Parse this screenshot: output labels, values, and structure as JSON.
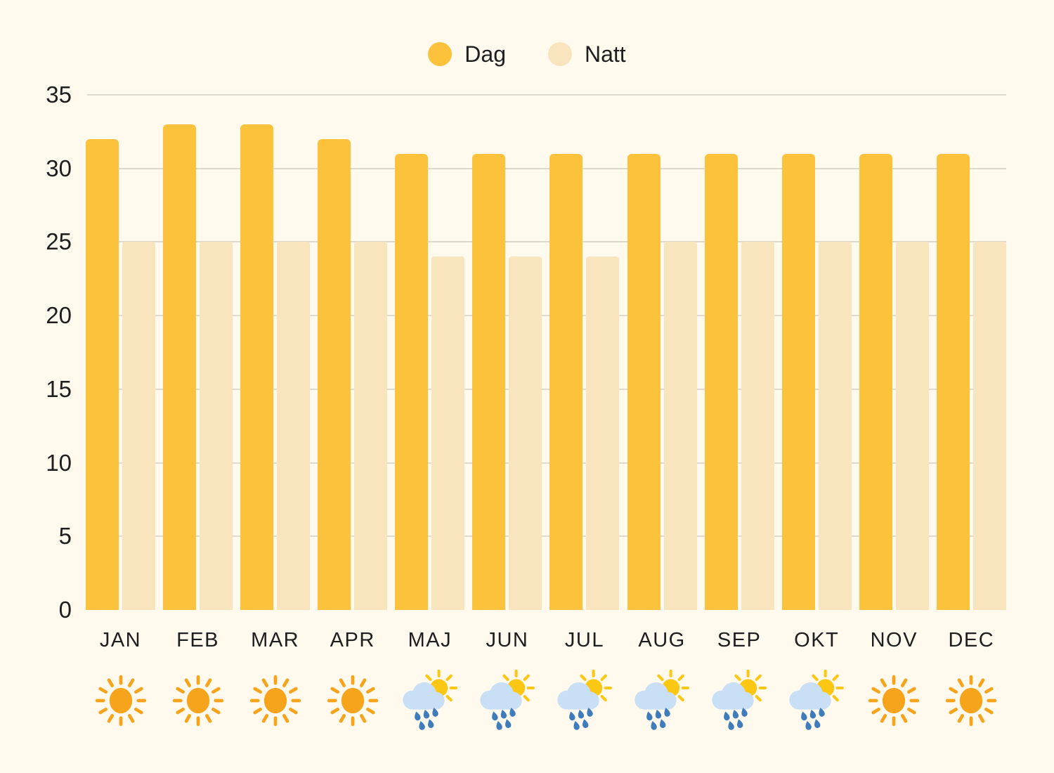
{
  "colors": {
    "background": "#FFF9EE",
    "day_bar": "#FDC23C",
    "night_bar": "#F8E5BD",
    "gridline": "#DFDACF",
    "text": "#1E1E1E",
    "sun": "#F6A41C",
    "sun_small": "#FCC713",
    "cloud": "#C8DFF5",
    "raindrop": "#3E7CBC"
  },
  "legend": {
    "items": [
      {
        "label": "Dag",
        "color": "#FDC23C"
      },
      {
        "label": "Natt",
        "color": "#F8E5BD"
      }
    ]
  },
  "chart_data": {
    "type": "bar",
    "title": "",
    "xlabel": "",
    "ylabel": "",
    "categories": [
      "JAN",
      "FEB",
      "MAR",
      "APR",
      "MAJ",
      "JUN",
      "JUL",
      "AUG",
      "SEP",
      "OKT",
      "NOV",
      "DEC"
    ],
    "series": [
      {
        "name": "Dag",
        "color": "#FDC23C",
        "values": [
          32,
          33,
          33,
          32,
          31,
          31,
          31,
          31,
          31,
          31,
          31,
          31
        ]
      },
      {
        "name": "Natt",
        "color": "#F8E5BD",
        "values": [
          25,
          25,
          25,
          25,
          24,
          24,
          24,
          25,
          25,
          25,
          25,
          25
        ]
      }
    ],
    "ylim": [
      0,
      35
    ],
    "yticks": [
      0,
      5,
      10,
      15,
      20,
      25,
      30,
      35
    ],
    "grid": true,
    "legend_position": "top-center",
    "weather_icons": [
      "sun",
      "sun",
      "sun",
      "sun",
      "rain-sun",
      "rain-sun",
      "rain-sun",
      "rain-sun",
      "rain-sun",
      "rain-sun",
      "sun",
      "sun"
    ]
  }
}
